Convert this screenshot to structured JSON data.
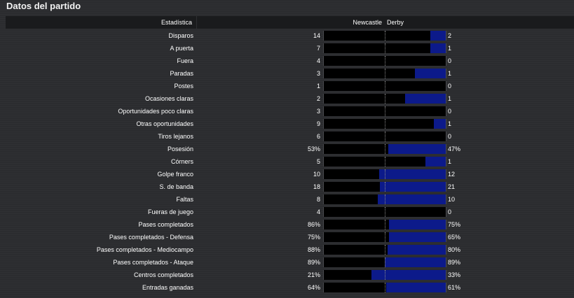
{
  "title": "Datos del partido",
  "header": {
    "stat_label": "Estadística",
    "home_team": "Newcastle",
    "away_team": "Derby"
  },
  "colors": {
    "away_bar": "#0c1a8a",
    "home_bar": "#000000"
  },
  "rows": [
    {
      "label": "Disparos",
      "home": "14",
      "away": "2",
      "away_share": 0.125
    },
    {
      "label": "A puerta",
      "home": "7",
      "away": "1",
      "away_share": 0.125
    },
    {
      "label": "Fuera",
      "home": "4",
      "away": "0",
      "away_share": 0
    },
    {
      "label": "Paradas",
      "home": "3",
      "away": "1",
      "away_share": 0.25
    },
    {
      "label": "Postes",
      "home": "1",
      "away": "0",
      "away_share": 0
    },
    {
      "label": "Ocasiones claras",
      "home": "2",
      "away": "1",
      "away_share": 0.333
    },
    {
      "label": "Oportunidades poco claras",
      "home": "3",
      "away": "0",
      "away_share": 0
    },
    {
      "label": "Otras oportunidades",
      "home": "9",
      "away": "1",
      "away_share": 0.1
    },
    {
      "label": "Tiros lejanos",
      "home": "6",
      "away": "0",
      "away_share": 0
    },
    {
      "label": "Posesión",
      "home": "53%",
      "away": "47%",
      "away_share": 0.47
    },
    {
      "label": "Córners",
      "home": "5",
      "away": "1",
      "away_share": 0.167
    },
    {
      "label": "Golpe franco",
      "home": "10",
      "away": "12",
      "away_share": 0.545
    },
    {
      "label": "S. de banda",
      "home": "18",
      "away": "21",
      "away_share": 0.538
    },
    {
      "label": "Faltas",
      "home": "8",
      "away": "10",
      "away_share": 0.556
    },
    {
      "label": "Fueras de juego",
      "home": "4",
      "away": "0",
      "away_share": 0
    },
    {
      "label": "Pases completados",
      "home": "86%",
      "away": "75%",
      "away_share": 0.466
    },
    {
      "label": "Pases completados - Defensa",
      "home": "75%",
      "away": "65%",
      "away_share": 0.464
    },
    {
      "label": "Pases completados - Mediocampo",
      "home": "88%",
      "away": "80%",
      "away_share": 0.476
    },
    {
      "label": "Pases completados - Ataque",
      "home": "89%",
      "away": "89%",
      "away_share": 0.5
    },
    {
      "label": "Centros completados",
      "home": "21%",
      "away": "33%",
      "away_share": 0.611
    },
    {
      "label": "Entradas ganadas",
      "home": "64%",
      "away": "61%",
      "away_share": 0.488
    }
  ]
}
